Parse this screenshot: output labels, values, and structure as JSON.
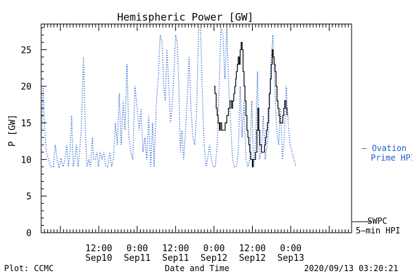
{
  "chart_data": {
    "type": "line",
    "title": "Hemispheric Power [GW]",
    "xlabel": "Date and Time",
    "ylabel": "P [GW]",
    "ylim": [
      0,
      28.5
    ],
    "y_ticks": [
      0,
      5,
      10,
      15,
      20,
      25
    ],
    "x_unit": "hours since 2020/09/09 18:00",
    "xlim": [
      0,
      97
    ],
    "x_ticks": [
      {
        "x": 18,
        "time": "12:00",
        "date": "Sep10"
      },
      {
        "x": 30,
        "time": "0:00",
        "date": "Sep11"
      },
      {
        "x": 42,
        "time": "12:00",
        "date": "Sep11"
      },
      {
        "x": 54,
        "time": "0:00",
        "date": "Sep12"
      },
      {
        "x": 66,
        "time": "12:00",
        "date": "Sep12"
      },
      {
        "x": 78,
        "time": "0:00",
        "date": "Sep13"
      }
    ],
    "legend_position": "right",
    "series": [
      {
        "name": "Ovation Prime HPI",
        "legend": [
          "– Ovation",
          "Prime HPI"
        ],
        "color": "#1f5fd0",
        "style": "dotted",
        "points": [
          [
            0.0,
            12
          ],
          [
            0.6,
            20
          ],
          [
            1.0,
            15
          ],
          [
            1.6,
            11
          ],
          [
            2.3,
            10
          ],
          [
            3.0,
            9
          ],
          [
            3.8,
            9
          ],
          [
            4.4,
            12
          ],
          [
            5.0,
            10
          ],
          [
            5.6,
            9
          ],
          [
            6.2,
            10
          ],
          [
            6.8,
            9
          ],
          [
            7.5,
            10
          ],
          [
            8.0,
            12
          ],
          [
            8.5,
            9
          ],
          [
            9.0,
            11
          ],
          [
            9.5,
            16
          ],
          [
            10.0,
            9
          ],
          [
            10.5,
            10
          ],
          [
            11.0,
            12
          ],
          [
            11.5,
            9
          ],
          [
            12.0,
            11
          ],
          [
            12.5,
            14
          ],
          [
            13.2,
            24
          ],
          [
            13.8,
            14
          ],
          [
            14.3,
            9
          ],
          [
            14.9,
            10
          ],
          [
            15.4,
            9
          ],
          [
            16.0,
            13
          ],
          [
            16.4,
            10
          ],
          [
            16.9,
            10
          ],
          [
            17.4,
            11
          ],
          [
            17.9,
            9
          ],
          [
            18.4,
            11
          ],
          [
            19.0,
            10
          ],
          [
            19.6,
            11
          ],
          [
            20.2,
            9
          ],
          [
            20.8,
            9
          ],
          [
            21.4,
            11
          ],
          [
            22.0,
            9
          ],
          [
            22.6,
            10
          ],
          [
            23.2,
            15
          ],
          [
            23.8,
            12
          ],
          [
            24.4,
            19
          ],
          [
            25.0,
            12
          ],
          [
            25.6,
            18
          ],
          [
            26.2,
            14
          ],
          [
            26.8,
            23
          ],
          [
            27.4,
            13
          ],
          [
            28.0,
            11
          ],
          [
            28.6,
            10
          ],
          [
            29.3,
            20
          ],
          [
            30.0,
            17
          ],
          [
            30.6,
            14
          ],
          [
            31.2,
            17
          ],
          [
            31.8,
            11
          ],
          [
            32.4,
            13
          ],
          [
            33.0,
            10
          ],
          [
            33.6,
            16
          ],
          [
            34.2,
            9
          ],
          [
            34.8,
            15
          ],
          [
            35.3,
            9
          ],
          [
            36.0,
            18
          ],
          [
            36.6,
            21
          ],
          [
            37.2,
            27
          ],
          [
            37.8,
            26
          ],
          [
            38.3,
            20
          ],
          [
            38.8,
            18
          ],
          [
            39.3,
            25
          ],
          [
            39.9,
            20
          ],
          [
            40.4,
            15
          ],
          [
            41.0,
            18
          ],
          [
            41.5,
            22
          ],
          [
            42.0,
            27
          ],
          [
            42.5,
            26
          ],
          [
            43.0,
            20
          ],
          [
            43.5,
            11
          ],
          [
            44.0,
            14
          ],
          [
            44.5,
            10
          ],
          [
            45.0,
            13
          ],
          [
            45.6,
            18
          ],
          [
            46.2,
            24
          ],
          [
            46.8,
            17
          ],
          [
            47.4,
            13
          ],
          [
            48.0,
            12
          ],
          [
            48.6,
            17
          ],
          [
            49.2,
            28
          ],
          [
            49.8,
            28
          ],
          [
            50.3,
            20
          ],
          [
            50.9,
            12
          ],
          [
            51.5,
            9
          ],
          [
            52.0,
            10
          ],
          [
            52.6,
            12
          ],
          [
            53.2,
            10
          ],
          [
            53.8,
            9
          ],
          [
            54.4,
            9
          ],
          [
            55.0,
            12
          ],
          [
            55.6,
            20
          ],
          [
            56.2,
            28
          ],
          [
            56.8,
            27
          ],
          [
            57.4,
            21
          ],
          [
            58.0,
            28
          ],
          [
            58.6,
            20
          ],
          [
            59.2,
            15
          ],
          [
            59.8,
            10
          ],
          [
            60.4,
            9
          ],
          [
            61.0,
            9
          ],
          [
            61.6,
            11
          ],
          [
            62.2,
            20
          ],
          [
            62.8,
            13
          ],
          [
            63.4,
            18
          ],
          [
            64.0,
            10
          ],
          [
            64.6,
            9
          ],
          [
            65.2,
            10
          ],
          [
            65.8,
            18
          ],
          [
            66.4,
            9
          ],
          [
            67.0,
            12
          ],
          [
            67.6,
            22
          ],
          [
            68.2,
            10
          ],
          [
            68.8,
            11
          ],
          [
            69.4,
            16
          ],
          [
            70.0,
            10
          ],
          [
            70.6,
            12
          ],
          [
            71.2,
            15
          ],
          [
            71.8,
            23
          ],
          [
            72.4,
            27
          ],
          [
            73.0,
            20
          ],
          [
            73.6,
            14
          ],
          [
            74.2,
            12
          ],
          [
            74.8,
            17
          ],
          [
            75.4,
            10
          ],
          [
            76.0,
            13
          ],
          [
            76.6,
            20
          ],
          [
            77.2,
            15
          ],
          [
            77.8,
            12
          ],
          [
            78.4,
            11
          ],
          [
            79.0,
            10
          ],
          [
            79.6,
            9
          ]
        ]
      },
      {
        "name": "SWPC 5-min HPI",
        "legend": [
          "SWPC",
          "5–min HPI"
        ],
        "color": "#000000",
        "style": "solid",
        "points": [
          [
            54.0,
            20
          ],
          [
            54.3,
            20
          ],
          [
            54.3,
            19
          ],
          [
            54.7,
            19
          ],
          [
            54.7,
            17
          ],
          [
            55.0,
            17
          ],
          [
            55.0,
            16
          ],
          [
            55.3,
            16
          ],
          [
            55.3,
            15
          ],
          [
            55.7,
            15
          ],
          [
            55.7,
            14
          ],
          [
            56.0,
            14
          ],
          [
            56.0,
            15
          ],
          [
            56.4,
            15
          ],
          [
            56.4,
            14
          ],
          [
            57.0,
            14
          ],
          [
            57.5,
            14
          ],
          [
            57.5,
            15
          ],
          [
            58.0,
            15
          ],
          [
            58.0,
            16
          ],
          [
            58.5,
            16
          ],
          [
            58.5,
            17
          ],
          [
            59.0,
            17
          ],
          [
            59.0,
            18
          ],
          [
            59.5,
            18
          ],
          [
            59.5,
            17
          ],
          [
            59.8,
            17
          ],
          [
            59.8,
            18
          ],
          [
            60.2,
            18
          ],
          [
            60.2,
            19
          ],
          [
            60.5,
            19
          ],
          [
            60.5,
            20
          ],
          [
            60.8,
            20
          ],
          [
            60.8,
            21
          ],
          [
            61.0,
            21
          ],
          [
            61.0,
            22
          ],
          [
            61.3,
            22
          ],
          [
            61.3,
            23
          ],
          [
            61.6,
            23
          ],
          [
            61.6,
            24
          ],
          [
            61.9,
            24
          ],
          [
            61.9,
            23
          ],
          [
            62.2,
            23
          ],
          [
            62.2,
            25
          ],
          [
            62.5,
            25
          ],
          [
            62.5,
            26
          ],
          [
            62.8,
            26
          ],
          [
            62.8,
            25
          ],
          [
            63.1,
            25
          ],
          [
            63.1,
            22
          ],
          [
            63.4,
            22
          ],
          [
            63.4,
            20
          ],
          [
            63.7,
            20
          ],
          [
            63.7,
            18
          ],
          [
            64.0,
            18
          ],
          [
            64.0,
            16
          ],
          [
            64.3,
            16
          ],
          [
            64.3,
            14
          ],
          [
            64.6,
            14
          ],
          [
            64.6,
            13
          ],
          [
            64.9,
            13
          ],
          [
            64.9,
            12
          ],
          [
            65.2,
            12
          ],
          [
            65.2,
            11
          ],
          [
            65.5,
            11
          ],
          [
            65.5,
            10
          ],
          [
            66.0,
            10
          ],
          [
            66.0,
            9
          ],
          [
            66.2,
            9
          ],
          [
            66.2,
            10
          ],
          [
            67.0,
            10
          ],
          [
            67.0,
            11
          ],
          [
            67.4,
            11
          ],
          [
            67.4,
            14
          ],
          [
            67.7,
            14
          ],
          [
            67.7,
            17
          ],
          [
            68.0,
            17
          ],
          [
            68.0,
            14
          ],
          [
            68.3,
            14
          ],
          [
            68.3,
            12
          ],
          [
            68.8,
            12
          ],
          [
            68.8,
            11
          ],
          [
            69.3,
            11
          ],
          [
            69.3,
            11
          ],
          [
            69.8,
            11
          ],
          [
            69.8,
            12
          ],
          [
            70.1,
            12
          ],
          [
            70.1,
            13
          ],
          [
            70.4,
            13
          ],
          [
            70.4,
            14
          ],
          [
            70.7,
            14
          ],
          [
            70.7,
            15
          ],
          [
            71.0,
            15
          ],
          [
            71.0,
            17
          ],
          [
            71.3,
            17
          ],
          [
            71.3,
            19
          ],
          [
            71.6,
            19
          ],
          [
            71.6,
            21
          ],
          [
            71.9,
            21
          ],
          [
            71.9,
            23
          ],
          [
            72.2,
            23
          ],
          [
            72.2,
            25
          ],
          [
            72.5,
            25
          ],
          [
            72.5,
            24
          ],
          [
            72.8,
            24
          ],
          [
            72.8,
            23
          ],
          [
            73.1,
            23
          ],
          [
            73.1,
            22
          ],
          [
            73.4,
            22
          ],
          [
            73.4,
            20
          ],
          [
            73.7,
            20
          ],
          [
            73.7,
            18
          ],
          [
            74.0,
            18
          ],
          [
            74.0,
            17
          ],
          [
            74.3,
            17
          ],
          [
            74.3,
            16
          ],
          [
            74.6,
            16
          ],
          [
            74.6,
            15
          ],
          [
            75.0,
            15
          ],
          [
            75.5,
            15
          ],
          [
            75.5,
            16
          ],
          [
            75.8,
            16
          ],
          [
            75.8,
            17
          ],
          [
            76.1,
            17
          ],
          [
            76.1,
            18
          ],
          [
            76.5,
            18
          ],
          [
            76.5,
            17
          ],
          [
            76.8,
            17
          ],
          [
            76.8,
            16
          ]
        ]
      }
    ]
  },
  "footer": {
    "plot_credit": "Plot: CCMC",
    "timestamp": "2020/09/13 03:20:21"
  }
}
